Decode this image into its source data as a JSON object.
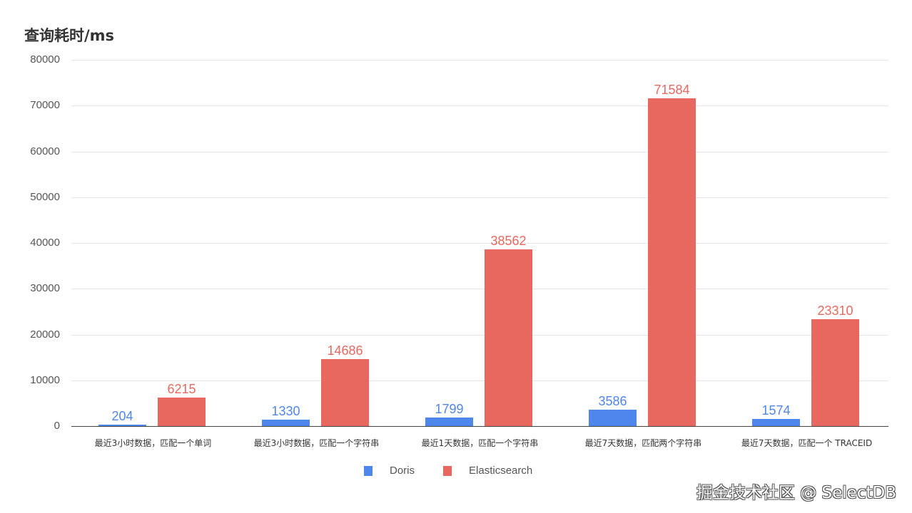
{
  "chart_data": {
    "type": "bar",
    "title": "查询耗时/ms",
    "xlabel": "",
    "ylabel": "查询耗时/ms",
    "ylim": [
      0,
      80000
    ],
    "yticks": [
      0,
      10000,
      20000,
      30000,
      40000,
      50000,
      60000,
      70000,
      80000
    ],
    "categories": [
      "最近3小时数据，匹配一个单词",
      "最近3小时数据，匹配一个字符串",
      "最近1天数据，匹配一个字符串",
      "最近7天数据，匹配两个字符串",
      "最近7天数据，匹配一个 TRACEID"
    ],
    "series": [
      {
        "name": "Doris",
        "color": "#4f86ec",
        "values": [
          204,
          1330,
          1799,
          3586,
          1574
        ]
      },
      {
        "name": "Elasticsearch",
        "color": "#e8685f",
        "values": [
          6215,
          14686,
          38562,
          71584,
          23310
        ]
      }
    ],
    "grid": true,
    "legend_position": "bottom"
  },
  "watermark": "掘金技术社区 @ SelectDB"
}
